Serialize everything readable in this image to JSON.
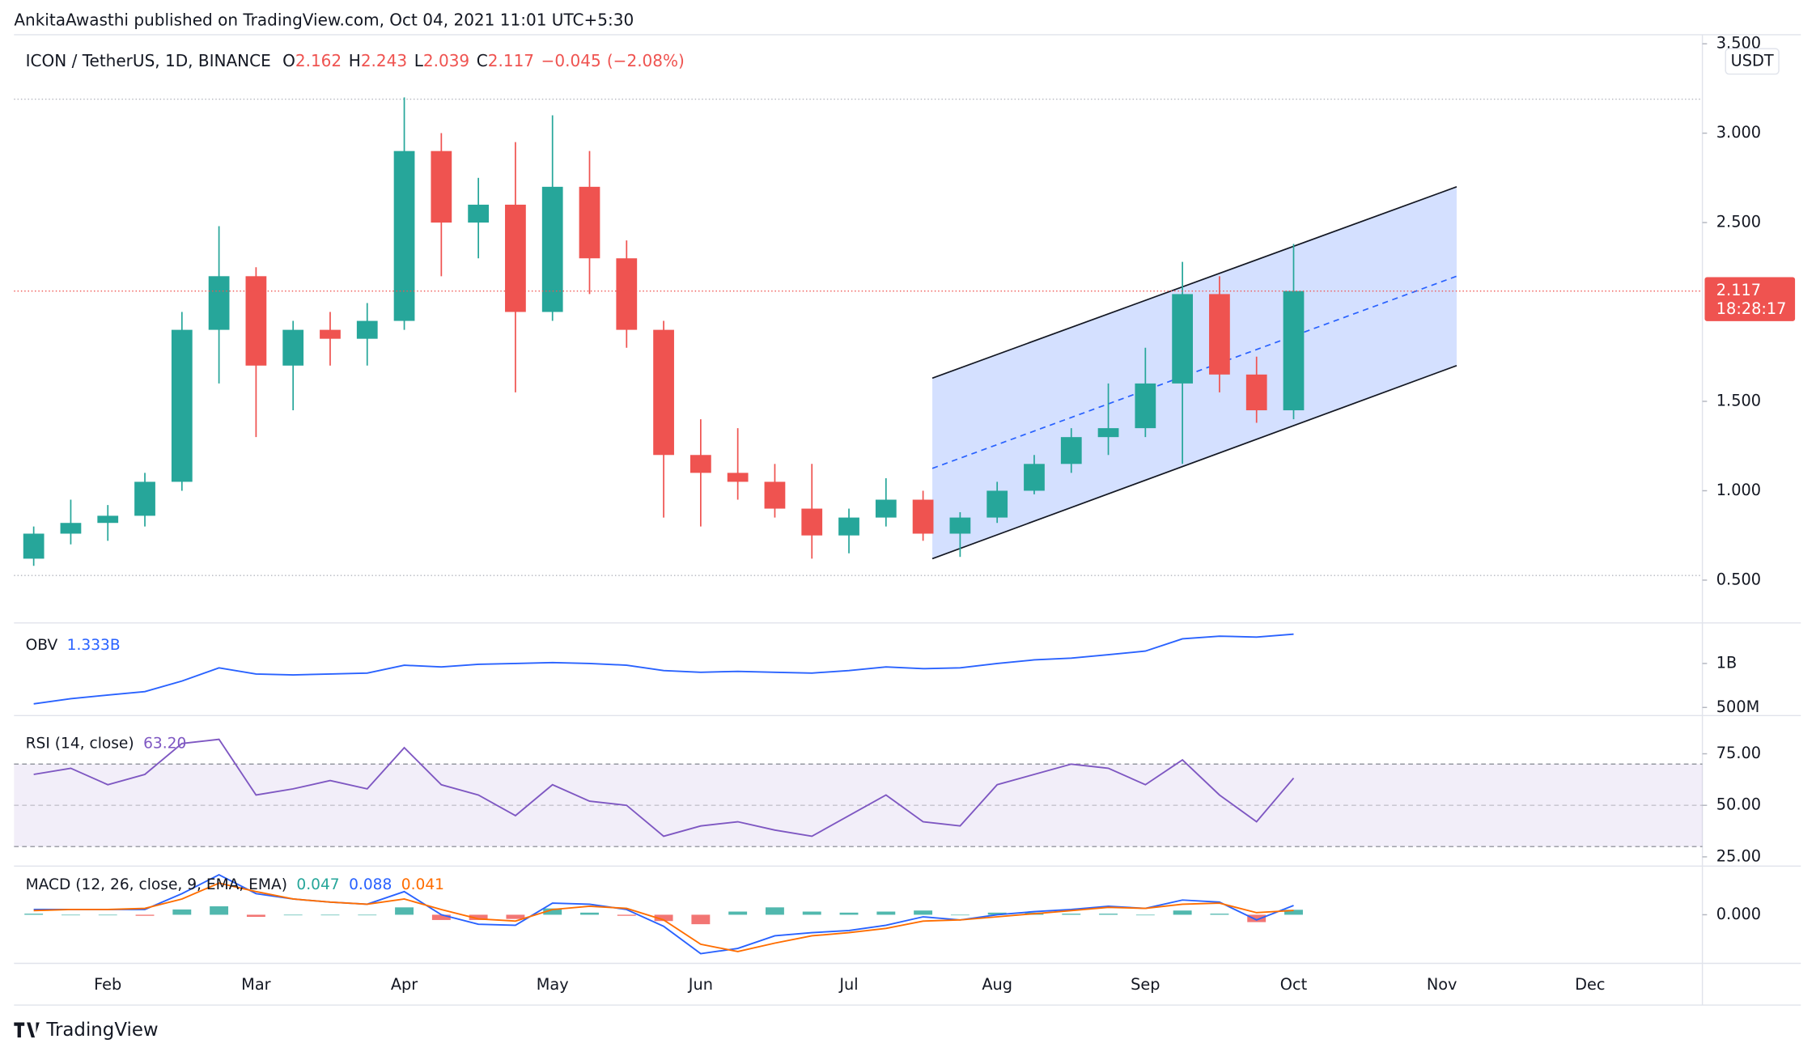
{
  "published": "AnkitaAwasthi published on TradingView.com, Oct 04, 2021 11:01 UTC+5:30",
  "brand": "TradingView",
  "chart_data": [
    {
      "type": "candlestick",
      "header": {
        "symbol": "ICON / TetherUS, 1D, BINANCE",
        "ohlc": [
          {
            "label": "O",
            "value": 2.162
          },
          {
            "label": "H",
            "value": 2.243
          },
          {
            "label": "L",
            "value": 2.039
          },
          {
            "label": "C",
            "value": 2.117
          }
        ],
        "change": {
          "value": -0.045,
          "label": "−0.045"
        },
        "change_percent": {
          "value": -2.08,
          "label": "(−2.08%)"
        }
      },
      "currency": "USDT",
      "countdown": "18:28:17",
      "categories": [
        null,
        null,
        "Feb",
        null,
        null,
        null,
        "Mar",
        null,
        null,
        null,
        "Apr",
        null,
        null,
        null,
        "May",
        null,
        null,
        null,
        "Jun",
        null,
        null,
        null,
        "Jul",
        null,
        null,
        null,
        "Aug",
        null,
        null,
        null,
        "Sep",
        null,
        null,
        null,
        "Oct",
        null,
        null,
        null,
        "Nov",
        null,
        null,
        null,
        "Dec",
        null,
        null
      ],
      "open": [
        0.62,
        0.76,
        0.82,
        0.86,
        1.05,
        1.9,
        2.2,
        1.7,
        1.9,
        1.85,
        1.95,
        2.9,
        2.5,
        2.6,
        2.0,
        2.7,
        2.3,
        1.9,
        1.2,
        1.1,
        1.05,
        0.9,
        0.75,
        0.85,
        0.95,
        0.76,
        0.85,
        1.0,
        1.15,
        1.3,
        1.35,
        1.6,
        2.1,
        1.65,
        1.45,
        null,
        null,
        null,
        null,
        null,
        null,
        null,
        null,
        null,
        null
      ],
      "high": [
        0.8,
        0.95,
        0.92,
        1.1,
        2.0,
        2.48,
        2.25,
        1.95,
        2.0,
        2.05,
        3.2,
        3.0,
        2.75,
        2.95,
        3.1,
        2.9,
        2.4,
        1.95,
        1.4,
        1.35,
        1.15,
        1.15,
        0.9,
        1.07,
        1.0,
        0.88,
        1.05,
        1.2,
        1.35,
        1.6,
        1.8,
        2.28,
        2.2,
        1.75,
        2.38,
        null,
        null,
        null,
        null,
        null,
        null,
        null,
        null,
        null,
        null
      ],
      "low": [
        0.58,
        0.7,
        0.72,
        0.8,
        1.0,
        1.6,
        1.3,
        1.45,
        1.7,
        1.7,
        1.9,
        2.2,
        2.3,
        1.55,
        1.95,
        2.1,
        1.8,
        0.85,
        0.8,
        0.95,
        0.85,
        0.62,
        0.65,
        0.8,
        0.72,
        0.63,
        0.82,
        0.98,
        1.1,
        1.2,
        1.3,
        1.15,
        1.55,
        1.38,
        1.4,
        null,
        null,
        null,
        null,
        null,
        null,
        null,
        null,
        null,
        null
      ],
      "close": [
        0.76,
        0.82,
        0.86,
        1.05,
        1.9,
        2.2,
        1.7,
        1.9,
        1.85,
        1.95,
        2.9,
        2.5,
        2.6,
        2.0,
        2.7,
        2.3,
        1.9,
        1.2,
        1.1,
        1.05,
        0.9,
        0.75,
        0.85,
        0.95,
        0.76,
        0.85,
        1.0,
        1.15,
        1.3,
        1.35,
        1.6,
        2.1,
        1.65,
        1.45,
        2.117,
        null,
        null,
        null,
        null,
        null,
        null,
        null,
        null,
        null,
        null
      ],
      "up_color": "#26a69a",
      "down_color": "#ef5350",
      "ylim": [
        0.267,
        3.5
      ],
      "yticks": [
        {
          "value": 0.5,
          "label": "0.500"
        },
        {
          "value": 1,
          "label": "1.000"
        },
        {
          "value": 1.5,
          "label": "1.500"
        },
        {
          "value": 2.5,
          "label": "2.500"
        },
        {
          "value": 3,
          "label": "3.000"
        },
        {
          "value": 3.5,
          "label": "3.500"
        }
      ],
      "hlines": [
        3.19,
        0.526
      ],
      "channel": {
        "x": [
          24.25,
          38.4
        ],
        "upper": [
          1.63,
          2.7
        ],
        "lower": [
          0.62,
          1.7
        ],
        "color": "#2962ff"
      }
    },
    {
      "type": "line",
      "title": "OBV",
      "legend_value": {
        "value": 1333000000,
        "label": "1.333B"
      },
      "color": "#2962ff",
      "values": [
        540000000,
        600000000,
        640000000,
        680000000,
        800000000,
        950000000,
        880000000,
        870000000,
        880000000,
        890000000,
        980000000,
        960000000,
        990000000,
        1000000000,
        1010000000,
        1000000000,
        980000000,
        920000000,
        900000000,
        910000000,
        900000000,
        890000000,
        920000000,
        960000000,
        940000000,
        950000000,
        1000000000,
        1040000000,
        1060000000,
        1100000000,
        1140000000,
        1280000000,
        1310000000,
        1300000000,
        1333000000,
        null,
        null,
        null,
        null,
        null,
        null,
        null,
        null,
        null,
        null
      ],
      "ylim": [
        434000000,
        1434000000
      ],
      "yticks": [
        {
          "value": 500000000,
          "label": "500M"
        },
        {
          "value": 1000000000,
          "label": "1B"
        }
      ]
    },
    {
      "type": "line",
      "title": "RSI (14, close)",
      "legend_value": {
        "value": 63.2,
        "label": "63.20"
      },
      "color": "#7e57c2",
      "values": [
        65,
        68,
        60,
        65,
        80,
        82,
        55,
        58,
        62,
        58,
        78,
        60,
        55,
        45,
        60,
        52,
        50,
        35,
        40,
        42,
        38,
        35,
        45,
        55,
        42,
        40,
        60,
        65,
        70,
        68,
        60,
        72,
        55,
        42,
        63.2,
        null,
        null,
        null,
        null,
        null,
        null,
        null,
        null,
        null,
        null
      ],
      "band": [
        30,
        70
      ],
      "ylim": [
        22.2,
        89.6
      ],
      "yticks": [
        {
          "value": 25,
          "label": "25.00"
        },
        {
          "value": 50,
          "label": "50.00"
        },
        {
          "value": 75,
          "label": "75.00"
        }
      ]
    },
    {
      "type": "macd",
      "title": "MACD (12, 26, close, 9, EMA, EMA)",
      "histogram": {
        "color_up": "#26a69a",
        "color_down": "#ef5350",
        "values": [
          0.01,
          0,
          0,
          -0.01,
          0.05,
          0.08,
          -0.02,
          0,
          0,
          0,
          0.07,
          -0.05,
          -0.05,
          -0.04,
          0.06,
          0.02,
          -0.01,
          -0.06,
          -0.09,
          0.03,
          0.07,
          0.03,
          0.02,
          0.03,
          0.04,
          0,
          0.02,
          0.02,
          0.01,
          0.01,
          0,
          0.04,
          0.01,
          -0.07,
          0.047,
          null,
          null,
          null,
          null,
          null,
          null,
          null,
          null,
          null,
          null
        ]
      },
      "macd": {
        "color": "#2962ff",
        "values": [
          0.05,
          0.05,
          0.05,
          0.05,
          0.2,
          0.38,
          0.2,
          0.15,
          0.12,
          0.1,
          0.22,
          0.0,
          -0.09,
          -0.1,
          0.11,
          0.1,
          0.05,
          -0.11,
          -0.37,
          -0.32,
          -0.2,
          -0.17,
          -0.15,
          -0.1,
          -0.02,
          -0.05,
          0.0,
          0.03,
          0.05,
          0.08,
          0.06,
          0.14,
          0.12,
          -0.05,
          0.088,
          null,
          null,
          null,
          null,
          null,
          null,
          null,
          null,
          null,
          null
        ]
      },
      "signal": {
        "color": "#ff6d00",
        "values": [
          0.04,
          0.05,
          0.05,
          0.06,
          0.15,
          0.3,
          0.22,
          0.15,
          0.12,
          0.1,
          0.15,
          0.05,
          -0.04,
          -0.06,
          0.05,
          0.08,
          0.06,
          -0.05,
          -0.28,
          -0.35,
          -0.27,
          -0.2,
          -0.17,
          -0.13,
          -0.06,
          -0.05,
          -0.02,
          0.01,
          0.04,
          0.07,
          0.06,
          0.1,
          0.11,
          0.02,
          0.041,
          null,
          null,
          null,
          null,
          null,
          null,
          null,
          null,
          null,
          null
        ]
      },
      "ylim": [
        -0.44,
        0.385
      ],
      "yticks": [
        {
          "value": 0,
          "label": "0.000"
        }
      ]
    }
  ]
}
